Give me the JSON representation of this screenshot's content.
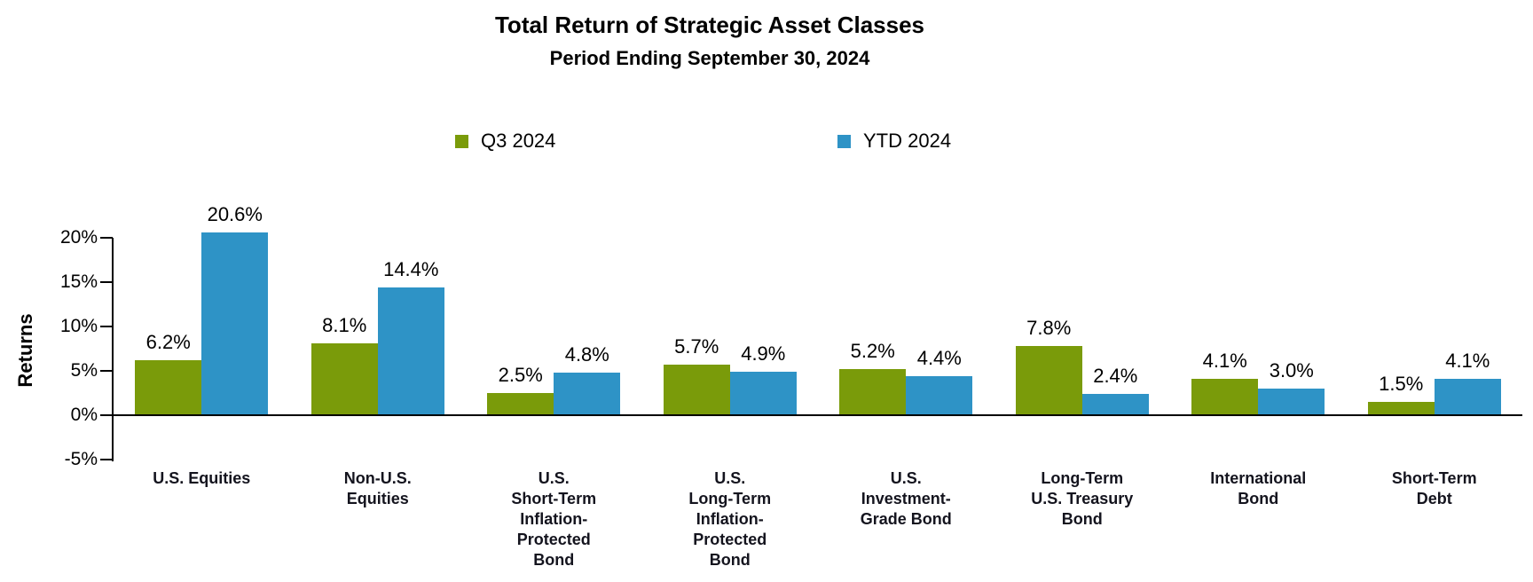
{
  "title": "Total Return of Strategic Asset Classes",
  "subtitle": "Period Ending September 30, 2024",
  "legend": [
    {
      "label": "Q3 2024",
      "color": "#7A9B0A"
    },
    {
      "label": "YTD 2024",
      "color": "#2E93C6"
    }
  ],
  "y_axis": {
    "label": "Returns",
    "tick_values": [
      20,
      15,
      10,
      5,
      0,
      -5
    ],
    "tick_labels": [
      "20%",
      "15%",
      "10%",
      "5%",
      "0%",
      "-5%"
    ]
  },
  "chart_data": {
    "type": "bar",
    "title": "Total Return of Strategic Asset Classes",
    "subtitle": "Period Ending September 30, 2024",
    "categories": [
      "U.S. Equities",
      "Non-U.S.\nEquities",
      "U.S.\nShort-Term\nInflation-\nProtected\nBond",
      "U.S.\nLong-Term\nInflation-\nProtected\nBond",
      "U.S.\nInvestment-\nGrade Bond",
      "Long-Term\nU.S. Treasury\nBond",
      "International\nBond",
      "Short-Term\nDebt"
    ],
    "series": [
      {
        "name": "Q3 2024",
        "color": "#7A9B0A",
        "values": [
          6.2,
          8.1,
          2.5,
          5.7,
          5.2,
          7.8,
          4.1,
          1.5
        ]
      },
      {
        "name": "YTD 2024",
        "color": "#2E93C6",
        "values": [
          20.6,
          14.4,
          4.8,
          4.9,
          4.4,
          2.4,
          3.0,
          4.1
        ]
      }
    ],
    "data_label_format": "{value}%",
    "xlabel": "",
    "ylabel": "Returns",
    "ylim": [
      -5,
      20
    ],
    "ytick_step": 5,
    "grid": false,
    "legend_position": "top"
  }
}
